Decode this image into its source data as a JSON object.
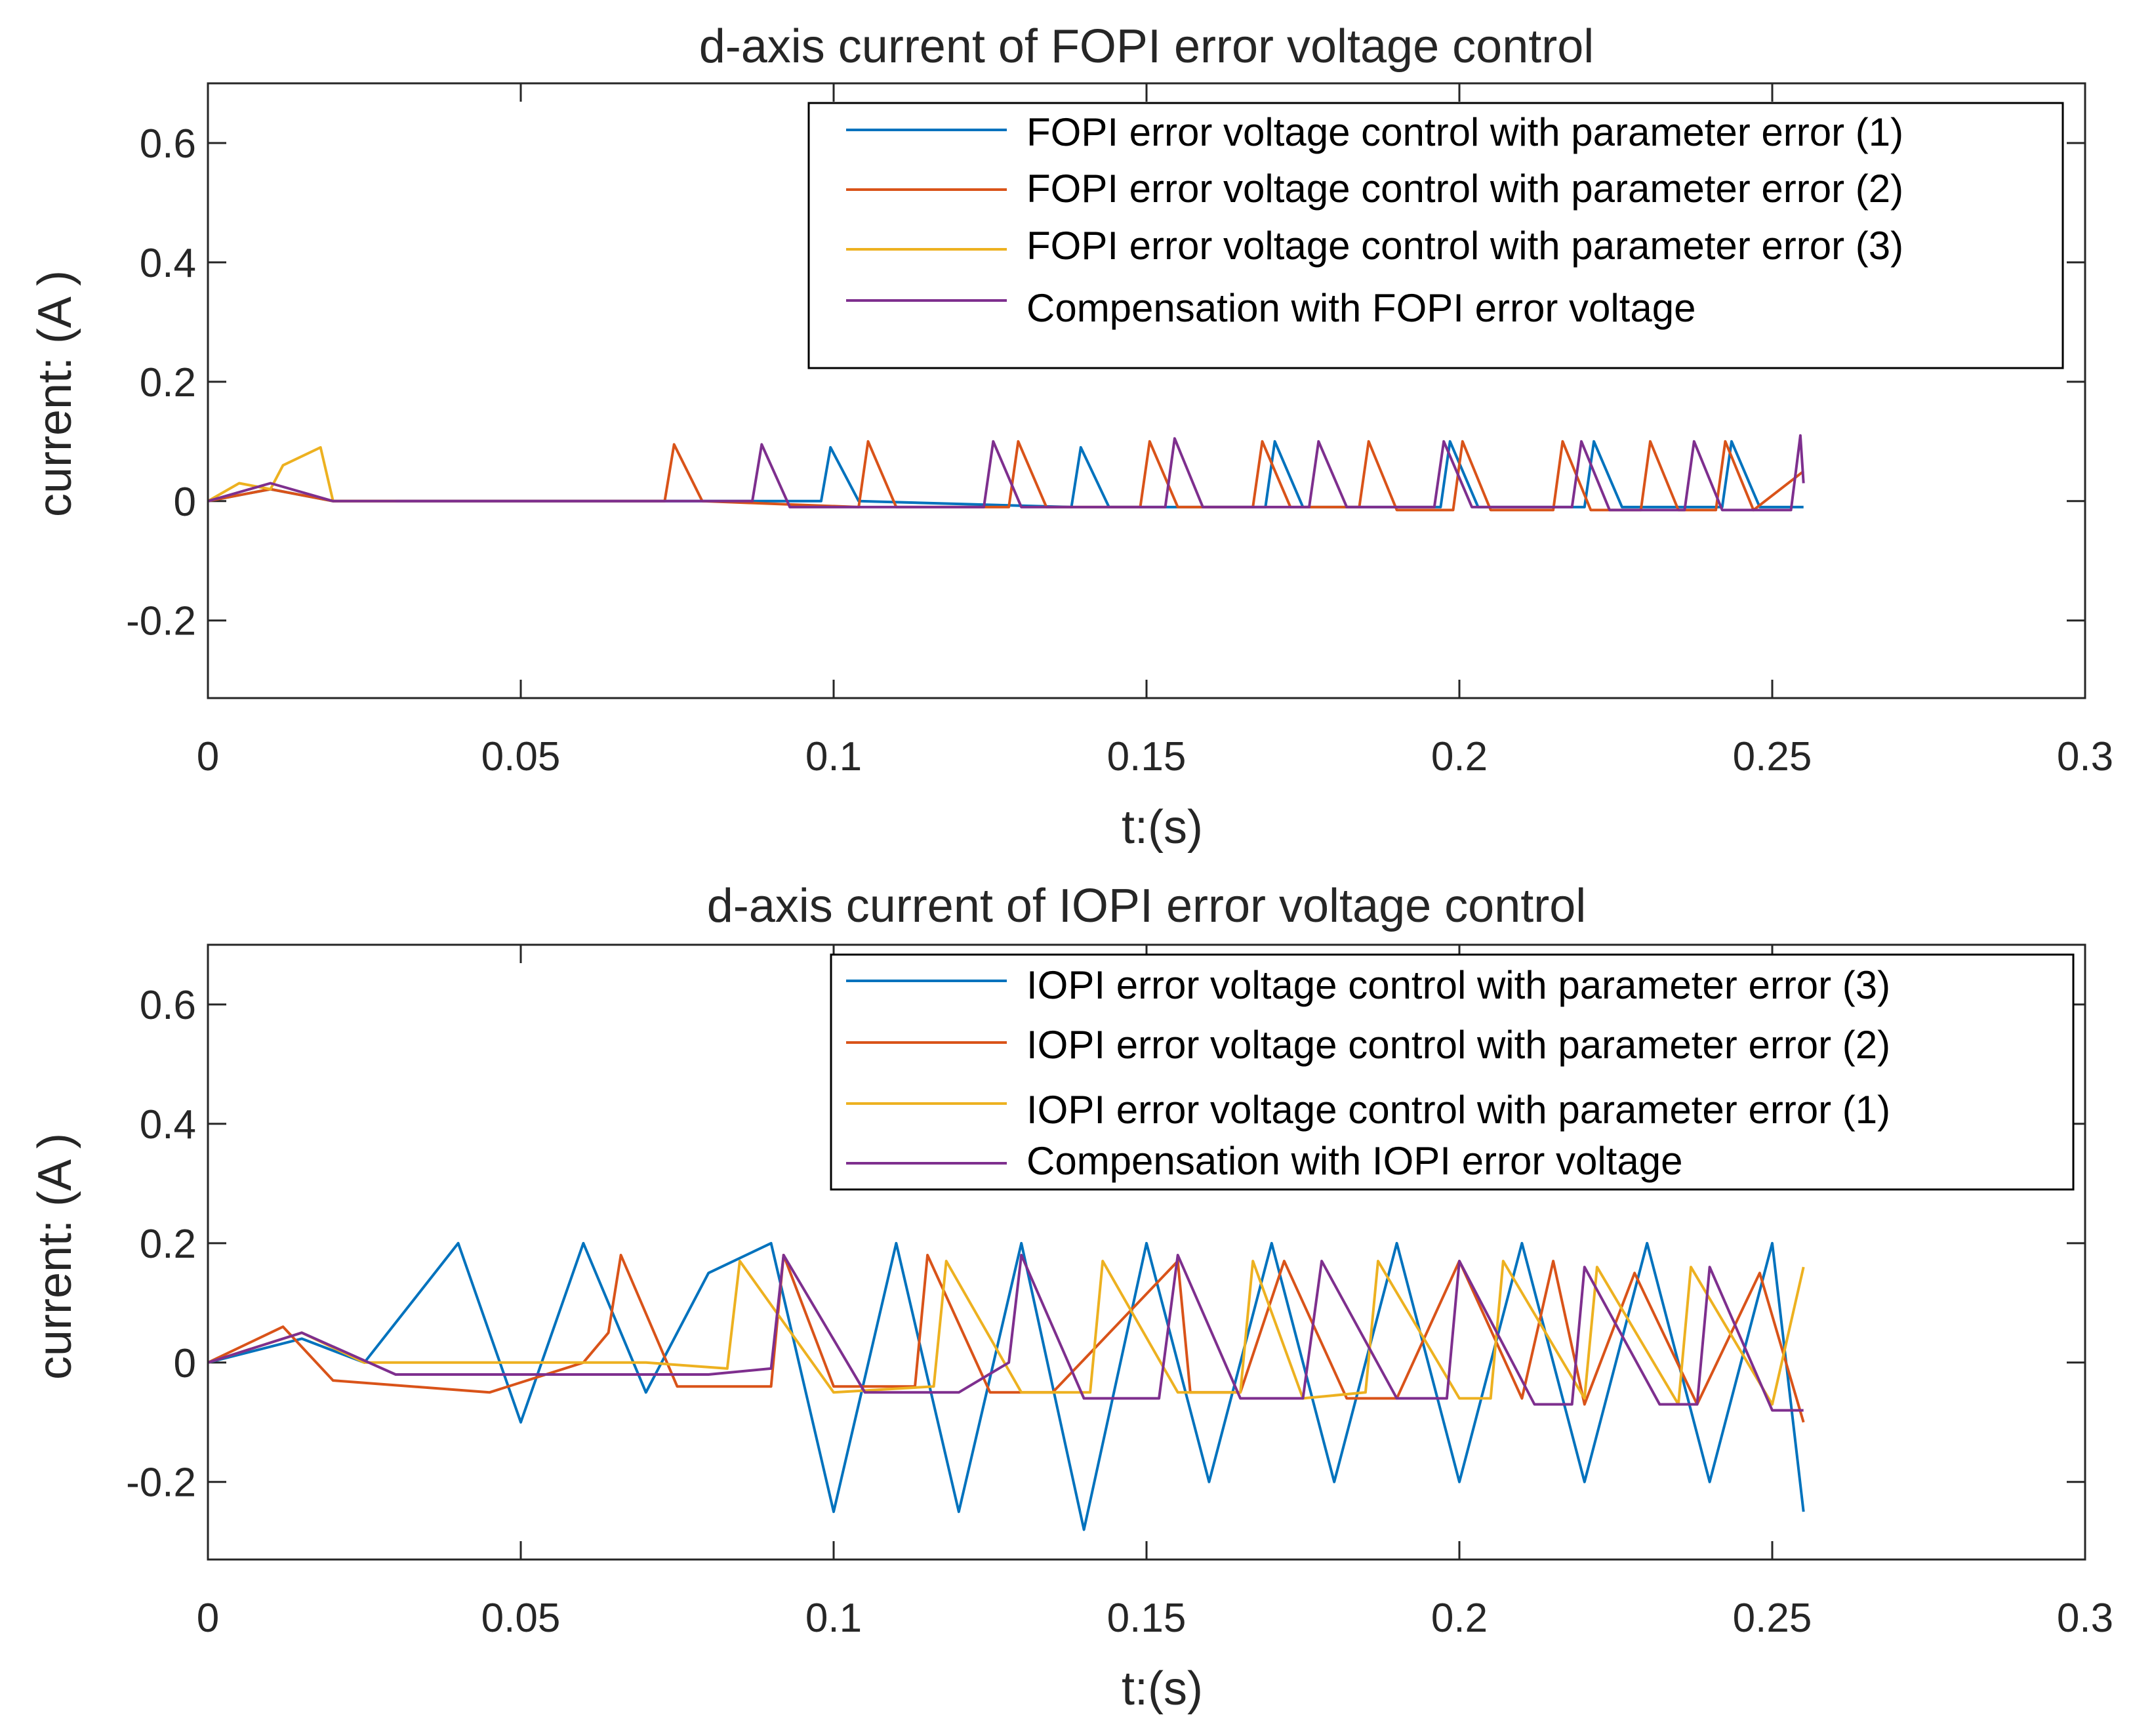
{
  "chart_data": [
    {
      "type": "line",
      "title": "d-axis current of FOPI error voltage control",
      "xlabel": "t:(s)",
      "ylabel": "current:  (A )",
      "xlim": [
        0,
        0.3
      ],
      "ylim": [
        -0.33,
        0.7
      ],
      "xticks": [
        0,
        0.05,
        0.1,
        0.15,
        0.2,
        0.25,
        0.3
      ],
      "xtick_labels": [
        "0",
        "0.05",
        "0.1",
        "0.15",
        "0.2",
        "0.25",
        "0.3"
      ],
      "yticks": [
        -0.2,
        0,
        0.2,
        0.4,
        0.6
      ],
      "ytick_labels": [
        "-0.2",
        "0",
        "0.2",
        "0.4",
        "0.6"
      ],
      "legend_location": "top-right",
      "series": [
        {
          "name": "FOPI error voltage control with parameter error (1)",
          "color": "#0072BD",
          "x": [
            0,
            0.01,
            0.02,
            0.06,
            0.098,
            0.0995,
            0.104,
            0.138,
            0.1395,
            0.144,
            0.169,
            0.1705,
            0.175,
            0.197,
            0.1985,
            0.203,
            0.22,
            0.2215,
            0.226,
            0.242,
            0.2435,
            0.248,
            0.255
          ],
          "y": [
            0,
            0.02,
            0.0,
            0.0,
            0.0,
            0.09,
            0.0,
            -0.01,
            0.09,
            -0.01,
            -0.01,
            0.1,
            -0.01,
            -0.01,
            0.1,
            -0.01,
            -0.01,
            0.1,
            -0.01,
            -0.01,
            0.1,
            -0.01,
            -0.01
          ]
        },
        {
          "name": "FOPI error voltage control with parameter error (2)",
          "color": "#D95319",
          "x": [
            0,
            0.01,
            0.02,
            0.073,
            0.0745,
            0.079,
            0.104,
            0.1055,
            0.11,
            0.128,
            0.1295,
            0.134,
            0.149,
            0.1505,
            0.155,
            0.167,
            0.1685,
            0.173,
            0.184,
            0.1855,
            0.19,
            0.199,
            0.2005,
            0.205,
            0.215,
            0.2165,
            0.221,
            0.229,
            0.2305,
            0.235,
            0.241,
            0.2425,
            0.247,
            0.255
          ],
          "y": [
            0,
            0.02,
            0.0,
            0.0,
            0.095,
            0.0,
            -0.01,
            0.1,
            -0.01,
            -0.01,
            0.1,
            -0.01,
            -0.01,
            0.1,
            -0.01,
            -0.01,
            0.1,
            -0.01,
            -0.01,
            0.1,
            -0.015,
            -0.015,
            0.1,
            -0.015,
            -0.015,
            0.1,
            -0.015,
            -0.015,
            0.1,
            -0.015,
            -0.015,
            0.1,
            -0.015,
            0.05
          ]
        },
        {
          "name": "FOPI error voltage control with parameter error (3)",
          "color": "#EDB120",
          "x": [
            0,
            0.005,
            0.01,
            0.012,
            0.018,
            0.02,
            0.03
          ],
          "y": [
            0,
            0.03,
            0.02,
            0.06,
            0.09,
            0.0,
            0.0
          ]
        },
        {
          "name": "Compensation with FOPI error voltage",
          "color": "#7E2F8E",
          "x": [
            0,
            0.01,
            0.02,
            0.087,
            0.0885,
            0.093,
            0.124,
            0.1255,
            0.13,
            0.153,
            0.1545,
            0.159,
            0.176,
            0.1775,
            0.182,
            0.196,
            0.1975,
            0.202,
            0.218,
            0.2195,
            0.224,
            0.236,
            0.2375,
            0.242,
            0.253,
            0.2545,
            0.255
          ],
          "y": [
            0,
            0.03,
            0.0,
            0.0,
            0.095,
            -0.01,
            -0.01,
            0.1,
            -0.01,
            -0.01,
            0.105,
            -0.01,
            -0.01,
            0.1,
            -0.01,
            -0.01,
            0.1,
            -0.01,
            -0.01,
            0.1,
            -0.015,
            -0.015,
            0.1,
            -0.015,
            -0.015,
            0.11,
            0.03
          ]
        }
      ]
    },
    {
      "type": "line",
      "title": "d-axis current of IOPI error voltage control",
      "xlabel": "t:(s)",
      "ylabel": "current:  (A )",
      "xlim": [
        0,
        0.3
      ],
      "ylim": [
        -0.33,
        0.7
      ],
      "xticks": [
        0,
        0.05,
        0.1,
        0.15,
        0.2,
        0.25,
        0.3
      ],
      "xtick_labels": [
        "0",
        "0.05",
        "0.1",
        "0.15",
        "0.2",
        "0.25",
        "0.3"
      ],
      "yticks": [
        -0.2,
        0,
        0.2,
        0.4,
        0.6
      ],
      "ytick_labels": [
        "-0.2",
        "0",
        "0.2",
        "0.4",
        "0.6"
      ],
      "legend_location": "top-right",
      "series": [
        {
          "name": "IOPI error voltage control with parameter error (3)",
          "color": "#0072BD",
          "x": [
            0,
            0.015,
            0.025,
            0.04,
            0.05,
            0.06,
            0.07,
            0.08,
            0.09,
            0.1,
            0.11,
            0.12,
            0.13,
            0.14,
            0.15,
            0.16,
            0.17,
            0.18,
            0.19,
            0.2,
            0.21,
            0.22,
            0.23,
            0.24,
            0.25,
            0.255
          ],
          "y": [
            0,
            0.04,
            0.0,
            0.2,
            -0.1,
            0.2,
            -0.05,
            0.15,
            0.2,
            -0.25,
            0.2,
            -0.25,
            0.2,
            -0.28,
            0.2,
            -0.2,
            0.2,
            -0.2,
            0.2,
            -0.2,
            0.2,
            -0.2,
            0.2,
            -0.2,
            0.2,
            -0.25
          ]
        },
        {
          "name": "IOPI error voltage control with parameter error (2)",
          "color": "#D95319",
          "x": [
            0,
            0.012,
            0.02,
            0.045,
            0.06,
            0.064,
            0.066,
            0.075,
            0.09,
            0.092,
            0.1,
            0.113,
            0.115,
            0.125,
            0.135,
            0.155,
            0.157,
            0.165,
            0.172,
            0.182,
            0.19,
            0.2,
            0.21,
            0.215,
            0.22,
            0.228,
            0.238,
            0.248,
            0.255
          ],
          "y": [
            0,
            0.06,
            -0.03,
            -0.05,
            0.0,
            0.05,
            0.18,
            -0.04,
            -0.04,
            0.18,
            -0.04,
            -0.04,
            0.18,
            -0.05,
            -0.05,
            0.17,
            -0.05,
            -0.05,
            0.17,
            -0.06,
            -0.06,
            0.17,
            -0.06,
            0.17,
            -0.07,
            0.15,
            -0.07,
            0.15,
            -0.1
          ]
        },
        {
          "name": "IOPI error voltage control with parameter error (1)",
          "color": "#EDB120",
          "x": [
            0,
            0.015,
            0.025,
            0.07,
            0.083,
            0.085,
            0.1,
            0.116,
            0.118,
            0.13,
            0.141,
            0.143,
            0.155,
            0.165,
            0.167,
            0.175,
            0.185,
            0.187,
            0.2,
            0.205,
            0.207,
            0.22,
            0.222,
            0.235,
            0.237,
            0.25,
            0.255
          ],
          "y": [
            0,
            0.05,
            0.0,
            0.0,
            -0.01,
            0.17,
            -0.05,
            -0.04,
            0.17,
            -0.05,
            -0.05,
            0.17,
            -0.05,
            -0.05,
            0.17,
            -0.06,
            -0.05,
            0.17,
            -0.06,
            -0.06,
            0.17,
            -0.06,
            0.16,
            -0.07,
            0.16,
            -0.07,
            0.16
          ]
        },
        {
          "name": "Compensation with IOPI error voltage",
          "color": "#7E2F8E",
          "x": [
            0,
            0.015,
            0.03,
            0.08,
            0.09,
            0.092,
            0.105,
            0.12,
            0.128,
            0.13,
            0.14,
            0.152,
            0.155,
            0.165,
            0.175,
            0.178,
            0.19,
            0.198,
            0.2,
            0.212,
            0.218,
            0.22,
            0.232,
            0.238,
            0.24,
            0.25,
            0.255
          ],
          "y": [
            0,
            0.05,
            -0.02,
            -0.02,
            -0.01,
            0.18,
            -0.05,
            -0.05,
            0.0,
            0.18,
            -0.06,
            -0.06,
            0.18,
            -0.06,
            -0.06,
            0.17,
            -0.06,
            -0.06,
            0.17,
            -0.07,
            -0.07,
            0.16,
            -0.07,
            -0.07,
            0.16,
            -0.08,
            -0.08
          ]
        }
      ]
    }
  ]
}
